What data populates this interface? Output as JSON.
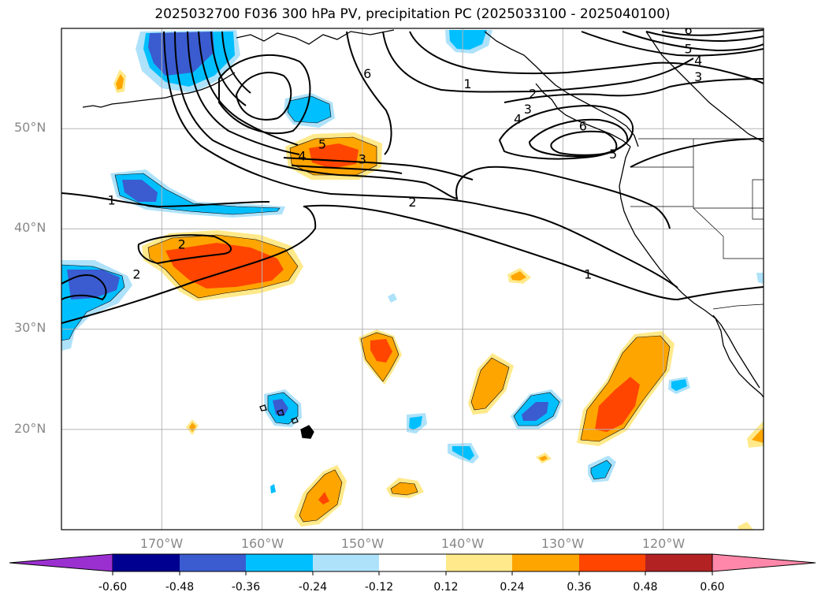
{
  "title": "2025032700 F036 300 hPa PV, precipitation PC (2025033100 - 2025040100)",
  "map": {
    "lon_range": [
      -180,
      -110
    ],
    "lat_range": [
      10,
      60
    ],
    "lat_labels": [
      {
        "lat": 50,
        "text": "50°N"
      },
      {
        "lat": 40,
        "text": "40°N"
      },
      {
        "lat": 30,
        "text": "30°N"
      },
      {
        "lat": 20,
        "text": "20°N"
      }
    ],
    "lon_labels": [
      {
        "lon": -170,
        "text": "170°W"
      },
      {
        "lon": -160,
        "text": "160°W"
      },
      {
        "lon": -150,
        "text": "150°W"
      },
      {
        "lon": -140,
        "text": "140°W"
      },
      {
        "lon": -130,
        "text": "130°W"
      },
      {
        "lon": -120,
        "text": "120°W"
      }
    ]
  },
  "contour_labels": [
    {
      "text": "1",
      "lon": -175,
      "lat": 42.9
    },
    {
      "text": "2",
      "lon": -172.5,
      "lat": 35.5
    },
    {
      "text": "2",
      "lon": -168,
      "lat": 38.5
    },
    {
      "text": "4",
      "lon": -156,
      "lat": 47.3
    },
    {
      "text": "5",
      "lon": -154,
      "lat": 48.5
    },
    {
      "text": "3",
      "lon": -150,
      "lat": 47.0
    },
    {
      "text": "6",
      "lon": -149.5,
      "lat": 55.5
    },
    {
      "text": "2",
      "lon": -145,
      "lat": 42.7
    },
    {
      "text": "1",
      "lon": -139.5,
      "lat": 54.5
    },
    {
      "text": "2",
      "lon": -133,
      "lat": 53.5
    },
    {
      "text": "3",
      "lon": -133.5,
      "lat": 52.0
    },
    {
      "text": "4",
      "lon": -134.5,
      "lat": 51.0
    },
    {
      "text": "6",
      "lon": -128,
      "lat": 50.3
    },
    {
      "text": "5",
      "lon": -125,
      "lat": 47.5
    },
    {
      "text": "5",
      "lon": -117.5,
      "lat": 58.0
    },
    {
      "text": "4",
      "lon": -116.5,
      "lat": 56.8
    },
    {
      "text": "3",
      "lon": -116.5,
      "lat": 55.2
    },
    {
      "text": "6",
      "lon": -117.5,
      "lat": 59.9
    },
    {
      "text": "1",
      "lon": -127.5,
      "lat": 35.5
    }
  ],
  "colorbar": {
    "levels": [
      "-0.60",
      "-0.48",
      "-0.36",
      "-0.24",
      "-0.12",
      "0.12",
      "0.24",
      "0.36",
      "0.48",
      "0.60"
    ],
    "colors": [
      "#9b30d0",
      "#000090",
      "#3a5cd0",
      "#00bfff",
      "#aee2fa",
      "#ffffff",
      "#ffe98a",
      "#ffa500",
      "#ff4500",
      "#b22222",
      "#ff88aa"
    ]
  },
  "fill_colors": {
    "light_blue": "#aee2fa",
    "sky_blue": "#00bfff",
    "royal_blue": "#3a5cd0",
    "yellow": "#ffe98a",
    "orange": "#ffa500",
    "red_orange": "#ff4500"
  }
}
